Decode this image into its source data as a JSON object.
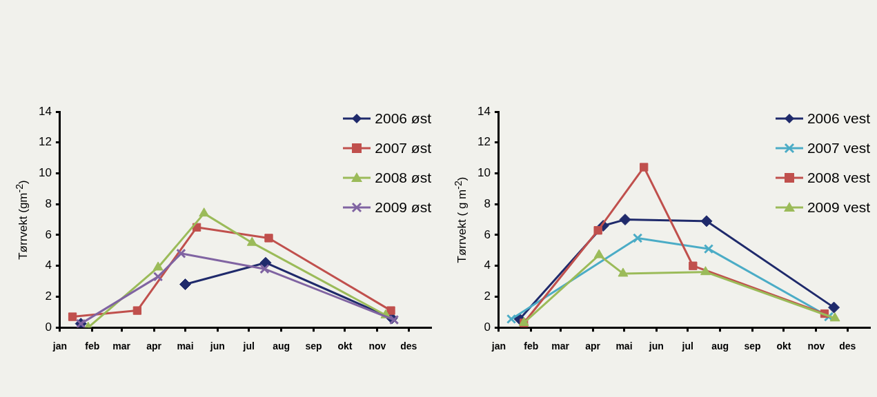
{
  "chart_data": [
    {
      "type": "line",
      "ylabel": "Tørrvekt (gm$^{-2}$)",
      "xlim": [
        "--01-01",
        "--12-22"
      ],
      "ylim": [
        0,
        14
      ],
      "xticks": [
        {
          "value": "--01-01",
          "label": "jan"
        },
        {
          "value": "--02-01",
          "label": "feb"
        },
        {
          "value": "--03-01",
          "label": "mar"
        },
        {
          "value": "--04-01",
          "label": "apr"
        },
        {
          "value": "--05-01",
          "label": "mai"
        },
        {
          "value": "--06-01",
          "label": "jun"
        },
        {
          "value": "--07-01",
          "label": "jul"
        },
        {
          "value": "--08-01",
          "label": "aug"
        },
        {
          "value": "--09-01",
          "label": "sep"
        },
        {
          "value": "--10-01",
          "label": "okt"
        },
        {
          "value": "--11-01",
          "label": "nov"
        },
        {
          "value": "--12-01",
          "label": "des"
        }
      ],
      "yticks": [
        0,
        2,
        4,
        6,
        8,
        10,
        12,
        14
      ],
      "grid": false,
      "legend": "top right",
      "series": [
        {
          "name": "2006 øst",
          "color": "#1f2a6b",
          "marker": "diamond",
          "x": [
            "--01-21",
            "--04-01",
            "--05-01",
            "--07-17",
            "--11-15"
          ],
          "values": [
            0.25,
            null,
            2.8,
            4.2,
            0.6
          ]
        },
        {
          "name": "2007 øst",
          "color": "#c0504d",
          "marker": "square",
          "x": [
            "--01-13",
            "--03-16",
            "--05-12",
            "--07-20",
            "--11-14"
          ],
          "values": [
            0.7,
            1.1,
            6.5,
            5.8,
            1.1
          ]
        },
        {
          "name": "2008 øst",
          "color": "#9bbb59",
          "marker": "triangle",
          "x": [
            "--01-28",
            "--04-05",
            "--05-19",
            "--07-04",
            "--11-09"
          ],
          "values": [
            0.0,
            3.9,
            7.4,
            5.5,
            0.8
          ]
        },
        {
          "name": "2009 øst",
          "color": "#8064a2",
          "marker": "cross",
          "x": [
            "--01-21",
            "--04-05",
            "--04-27",
            "--07-16",
            "--11-17"
          ],
          "values": [
            0.25,
            3.3,
            4.8,
            3.8,
            0.5
          ]
        }
      ]
    },
    {
      "type": "line",
      "ylabel": "Tørrvekt ( g m$^{-2}$)",
      "xlim": [
        "--01-01",
        "--12-22"
      ],
      "ylim": [
        0,
        14
      ],
      "xticks": [
        {
          "value": "--01-01",
          "label": "jan"
        },
        {
          "value": "--02-01",
          "label": "feb"
        },
        {
          "value": "--03-01",
          "label": "mar"
        },
        {
          "value": "--04-01",
          "label": "apr"
        },
        {
          "value": "--05-01",
          "label": "mai"
        },
        {
          "value": "--06-01",
          "label": "jun"
        },
        {
          "value": "--07-01",
          "label": "jul"
        },
        {
          "value": "--08-01",
          "label": "aug"
        },
        {
          "value": "--09-01",
          "label": "sep"
        },
        {
          "value": "--10-01",
          "label": "okt"
        },
        {
          "value": "--11-01",
          "label": "nov"
        },
        {
          "value": "--12-01",
          "label": "des"
        }
      ],
      "yticks": [
        0,
        2,
        4,
        6,
        8,
        10,
        12,
        14
      ],
      "grid": false,
      "legend": "top right",
      "series": [
        {
          "name": "2006 vest",
          "color": "#1f2a6b",
          "marker": "diamond",
          "x": [
            "--01-21",
            "--04-11",
            "--05-02",
            "--07-19",
            "--11-18"
          ],
          "values": [
            0.55,
            6.6,
            7.0,
            6.9,
            1.3
          ]
        },
        {
          "name": "2007 vest",
          "color": "#4bacc6",
          "marker": "cross",
          "x": [
            "--01-13",
            "--05-14",
            "--07-21",
            "--11-13"
          ],
          "values": [
            0.55,
            5.8,
            5.1,
            0.7
          ]
        },
        {
          "name": "2008 vest",
          "color": "#c0504d",
          "marker": "square",
          "x": [
            "--01-25",
            "--04-06",
            "--05-20",
            "--07-06",
            "--11-09"
          ],
          "values": [
            0.3,
            6.3,
            10.4,
            4.0,
            0.9
          ]
        },
        {
          "name": "2009 vest",
          "color": "#9bbb59",
          "marker": "triangle",
          "x": [
            "--01-25",
            "--04-07",
            "--04-30",
            "--07-18",
            "--11-19"
          ],
          "values": [
            0.3,
            4.7,
            3.5,
            3.6,
            0.6
          ]
        }
      ]
    }
  ]
}
